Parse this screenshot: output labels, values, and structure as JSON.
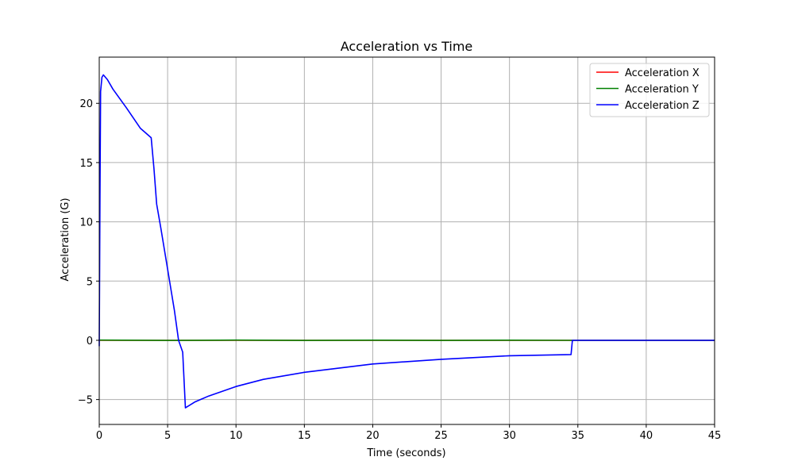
{
  "chart_data": {
    "type": "line",
    "title": "Acceleration vs Time",
    "xlabel": "Time (seconds)",
    "ylabel": "Acceleration (G)",
    "xlim": [
      0,
      45
    ],
    "ylim": [
      -7.1,
      23.9
    ],
    "xticks": [
      0,
      5,
      10,
      15,
      20,
      25,
      30,
      35,
      40,
      45
    ],
    "yticks": [
      -5,
      0,
      5,
      10,
      15,
      20
    ],
    "grid": true,
    "legend_position": "top-right",
    "series": [
      {
        "name": "Acceleration X",
        "color": "#ff0000",
        "x": [
          0,
          45
        ],
        "y": [
          0,
          0
        ]
      },
      {
        "name": "Acceleration Y",
        "color": "#008000",
        "x": [
          0,
          5,
          10,
          15,
          20,
          25,
          30,
          34.6,
          35,
          40,
          45
        ],
        "y": [
          0.02,
          -0.01,
          0.02,
          -0.01,
          0.01,
          -0.01,
          0.01,
          0.0,
          0.0,
          0.0,
          0.0
        ]
      },
      {
        "name": "Acceleration Z",
        "color": "#0000ff",
        "x": [
          0,
          0.05,
          0.1,
          0.2,
          0.3,
          0.6,
          1,
          2,
          3,
          3.5,
          3.8,
          4.0,
          4.2,
          4.5,
          5,
          5.5,
          5.8,
          6.1,
          6.3,
          7,
          8,
          9,
          10,
          12,
          15,
          20,
          25,
          30,
          34.5,
          34.6,
          35,
          40,
          45
        ],
        "y": [
          -0.5,
          12,
          21,
          22.2,
          22.4,
          22.0,
          21.2,
          19.6,
          17.9,
          17.4,
          17.1,
          14.5,
          11.5,
          9.5,
          6.0,
          2.5,
          0.0,
          -1.0,
          -5.7,
          -5.2,
          -4.7,
          -4.3,
          -3.9,
          -3.3,
          -2.7,
          -2.0,
          -1.6,
          -1.3,
          -1.2,
          0.0,
          0.0,
          0.0,
          0.0
        ]
      }
    ]
  }
}
